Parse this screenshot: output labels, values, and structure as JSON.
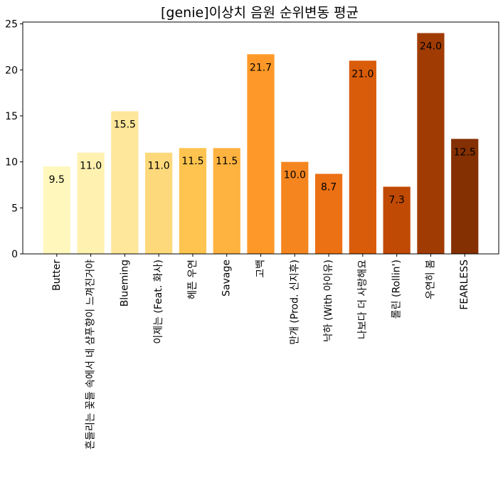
{
  "chart_data": {
    "type": "bar",
    "title": "[genie]이상치 음원 순위변동 평균",
    "xlabel": "",
    "ylabel": "",
    "ylim": [
      0,
      25.2
    ],
    "yticks": [
      0,
      5,
      10,
      15,
      20,
      25
    ],
    "categories": [
      "Butter",
      "흔들리는 꽃들 속에서 네 샴푸향이 느껴진거야",
      "Blueming",
      "이제는 (Feat. 화사)",
      "헤픈 우연",
      "Savage",
      "고백",
      "만개 (Prod. 신지후)",
      "낙하 (With 아이유)",
      "나보다 더 사랑해요",
      "롤린 (Rollin')",
      "우연히 봄",
      "FEARLESS"
    ],
    "values": [
      9.5,
      11.0,
      15.5,
      11.0,
      11.5,
      11.5,
      21.7,
      10.0,
      8.7,
      21.0,
      7.3,
      24.0,
      12.5
    ],
    "value_labels": [
      "9.5",
      "11.0",
      "15.5",
      "11.0",
      "11.5",
      "11.5",
      "21.7",
      "10.0",
      "8.7",
      "21.0",
      "7.3",
      "24.0",
      "12.5"
    ],
    "colors": [
      "#fff7bc",
      "#fff1b0",
      "#fee69a",
      "#fed97b",
      "#fec44f",
      "#feb23f",
      "#fe9929",
      "#f5861f",
      "#ec7014",
      "#d95c0a",
      "#c04904",
      "#a03c03",
      "#843002"
    ],
    "grid": false,
    "legend": "none"
  }
}
